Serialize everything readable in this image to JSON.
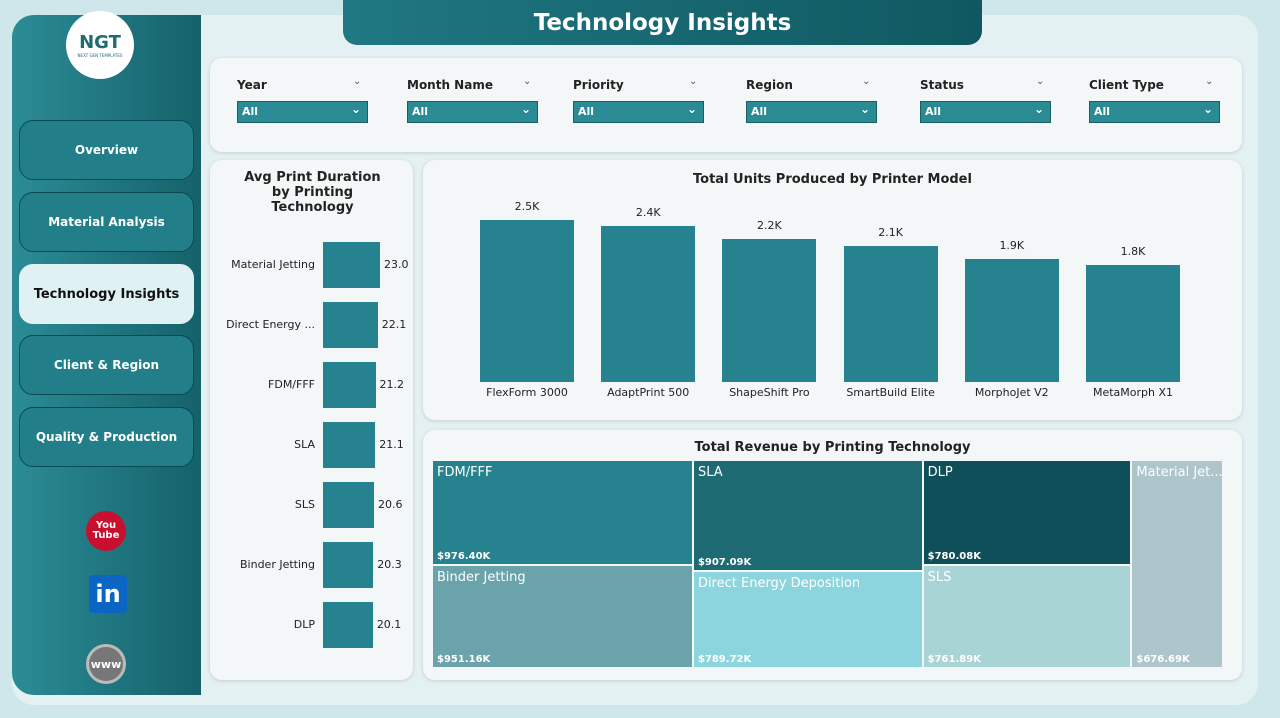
{
  "header": {
    "title": "Technology Insights"
  },
  "logo": {
    "text": "NGT",
    "subtitle": "NEXT GEN TEMPLATES"
  },
  "nav": [
    "Overview",
    "Material Analysis",
    "Technology Insights",
    "Client & Region",
    "Quality & Production"
  ],
  "social": [
    "You Tube",
    "in",
    "www"
  ],
  "filters": [
    {
      "label": "Year",
      "value": "All"
    },
    {
      "label": "Month Name",
      "value": "All"
    },
    {
      "label": "Priority",
      "value": "All"
    },
    {
      "label": "Region",
      "value": "All"
    },
    {
      "label": "Status",
      "value": "All"
    },
    {
      "label": "Client Type",
      "value": "All"
    }
  ],
  "chart_data": [
    {
      "type": "hbar",
      "title": "Avg Print Duration by Printing Technology",
      "categories": [
        "Material Jetting",
        "Direct Energy ...",
        "FDM/FFF",
        "SLA",
        "SLS",
        "Binder Jetting",
        "DLP"
      ],
      "values": [
        23.0,
        22.1,
        21.2,
        21.1,
        20.6,
        20.3,
        20.1
      ],
      "value_labels": [
        "23.0",
        "22.1",
        "21.2",
        "21.1",
        "20.6",
        "20.3",
        "20.1"
      ],
      "color": "#25828e"
    },
    {
      "type": "bar",
      "title": "Total Units Produced by Printer Model",
      "categories": [
        "FlexForm 3000",
        "AdaptPrint 500",
        "ShapeShift Pro",
        "SmartBuild Elite",
        "MorphoJet V2",
        "MetaMorph X1"
      ],
      "values": [
        2500,
        2400,
        2200,
        2100,
        1900,
        1800
      ],
      "value_labels": [
        "2.5K",
        "2.4K",
        "2.2K",
        "2.1K",
        "1.9K",
        "1.8K"
      ],
      "color": "#25828e"
    },
    {
      "type": "treemap",
      "title": "Total Revenue by Printing Technology",
      "categories": [
        "FDM/FFF",
        "Binder Jetting",
        "SLA",
        "Direct Energy Deposition",
        "DLP",
        "SLS",
        "Material Jet..."
      ],
      "values": [
        976400,
        951160,
        907090,
        789720,
        780080,
        761890,
        676690
      ],
      "value_labels": [
        "$976.40K",
        "$951.16K",
        "$907.09K",
        "$789.72K",
        "$780.08K",
        "$761.89K",
        "$676.69K"
      ],
      "colors": [
        "#25828e",
        "#6aa3aa",
        "#1f6b73",
        "#8dd5de",
        "#0f4f59",
        "#a9d4d6",
        "#aec6cb"
      ]
    }
  ]
}
